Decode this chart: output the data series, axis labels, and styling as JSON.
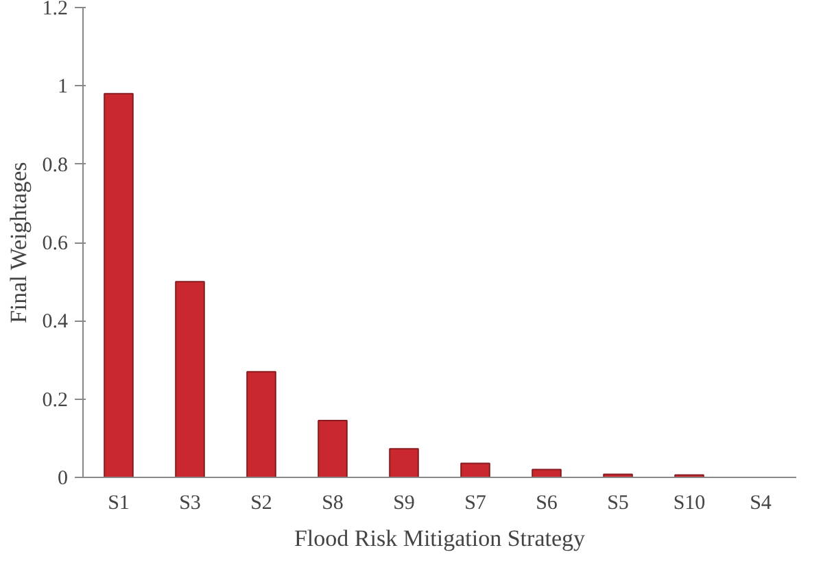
{
  "chart_data": {
    "type": "bar",
    "xlabel": "Flood Risk Mitigation Strategy",
    "ylabel": "Final Weightages",
    "categories": [
      "S1",
      "S3",
      "S2",
      "S8",
      "S9",
      "S7",
      "S6",
      "S5",
      "S10",
      "S4"
    ],
    "values": [
      0.98,
      0.5,
      0.27,
      0.145,
      0.073,
      0.036,
      0.02,
      0.008,
      0.006,
      null
    ],
    "color": "#c8282e",
    "ylim": [
      0,
      1.2
    ],
    "yticks": [
      0,
      {
        "value": 0.2,
        "label": "0.2"
      },
      {
        "value": 0.4,
        "label": "0.4"
      },
      {
        "value": 0.6,
        "label": "0.6"
      },
      {
        "value": 0.8,
        "label": "0.8"
      },
      1,
      {
        "value": 1.2,
        "label": "1.2"
      }
    ],
    "grid": false
  }
}
